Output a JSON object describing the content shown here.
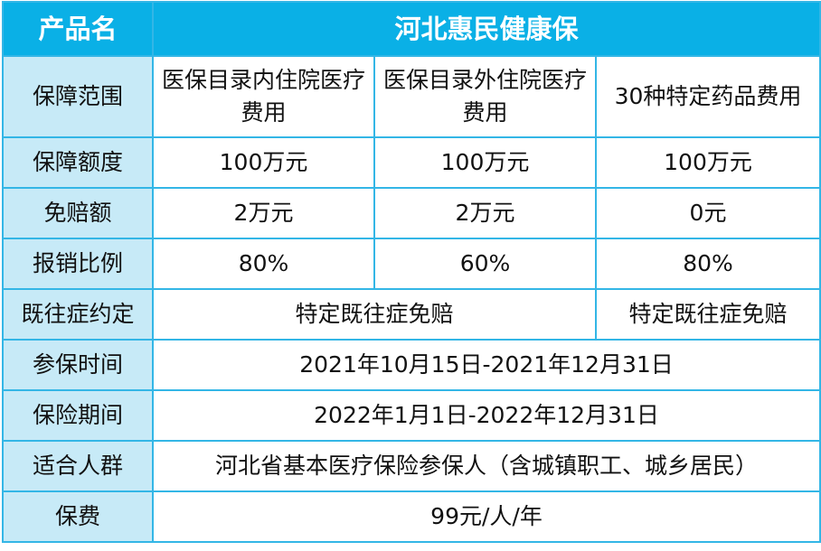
{
  "header": {
    "label": "产品名",
    "product": "河北惠民健康保"
  },
  "rows": {
    "scope": {
      "label": "保障范围",
      "c1": "医保目录内住院医疗费用",
      "c2": "医保目录外住院医疗费用",
      "c3": "30种特定药品费用"
    },
    "limit": {
      "label": "保障额度",
      "c1": "100万元",
      "c2": "100万元",
      "c3": "100万元"
    },
    "deductible": {
      "label": "免赔额",
      "c1": "2万元",
      "c2": "2万元",
      "c3": "0元"
    },
    "ratio": {
      "label": "报销比例",
      "c1": "80%",
      "c2": "60%",
      "c3": "80%"
    },
    "preexisting": {
      "label": "既往症约定",
      "c12": "特定既往症免赔",
      "c3": "特定既往症免赔"
    },
    "enroll": {
      "label": "参保时间",
      "value": "2021年10月15日-2021年12月31日"
    },
    "period": {
      "label": "保险期间",
      "value": "2022年1月1日-2022年12月31日"
    },
    "audience": {
      "label": "适合人群",
      "value": "河北省基本医疗保险参保人（含城镇职工、城乡居民）"
    },
    "premium": {
      "label": "保费",
      "value": "99元/人/年"
    }
  },
  "colors": {
    "header_bg": "#0ab0e6",
    "label_bg": "#c7eaf7",
    "border": "#33b6e6"
  }
}
